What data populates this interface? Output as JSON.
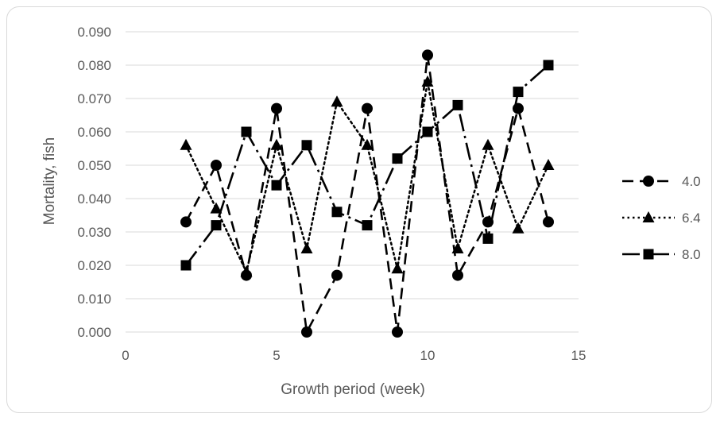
{
  "chart_data": {
    "type": "scatter",
    "title": "",
    "xlabel": "Growth period (week)",
    "ylabel": "Mortality, fish",
    "xlim": [
      0,
      15
    ],
    "ylim": [
      0,
      0.09
    ],
    "x_ticks": [
      "0",
      "5",
      "10",
      "15"
    ],
    "y_ticks": [
      "0.000",
      "0.010",
      "0.020",
      "0.030",
      "0.040",
      "0.050",
      "0.060",
      "0.070",
      "0.080",
      "0.090"
    ],
    "grid": "horizontal",
    "legend_position": "right",
    "series": [
      {
        "name": "4.0",
        "marker": "circle",
        "line_style": "dashed",
        "x": [
          2,
          3,
          4,
          5,
          6,
          7,
          8,
          9,
          10,
          11,
          12,
          13,
          14
        ],
        "y": [
          0.033,
          0.05,
          0.017,
          0.067,
          0.0,
          0.017,
          0.067,
          0.0,
          0.083,
          0.017,
          0.033,
          0.067,
          0.033
        ]
      },
      {
        "name": "6.4",
        "marker": "triangle",
        "line_style": "dotted",
        "x": [
          2,
          3,
          4,
          5,
          6,
          7,
          8,
          9,
          10,
          11,
          12,
          13,
          14
        ],
        "y": [
          0.056,
          0.037,
          0.018,
          0.056,
          0.025,
          0.069,
          0.056,
          0.019,
          0.075,
          0.025,
          0.056,
          0.031,
          0.05
        ]
      },
      {
        "name": "8.0",
        "marker": "square",
        "line_style": "long-dash-dot",
        "x": [
          2,
          3,
          4,
          5,
          6,
          7,
          8,
          9,
          10,
          11,
          12,
          13,
          14
        ],
        "y": [
          0.02,
          0.032,
          0.06,
          0.044,
          0.056,
          0.036,
          0.032,
          0.052,
          0.06,
          0.068,
          0.028,
          0.072,
          0.08
        ]
      }
    ],
    "colors": {
      "series": "#000000",
      "grid": "#d9d9d9",
      "text": "#595959",
      "border": "#d9d9d9"
    }
  }
}
